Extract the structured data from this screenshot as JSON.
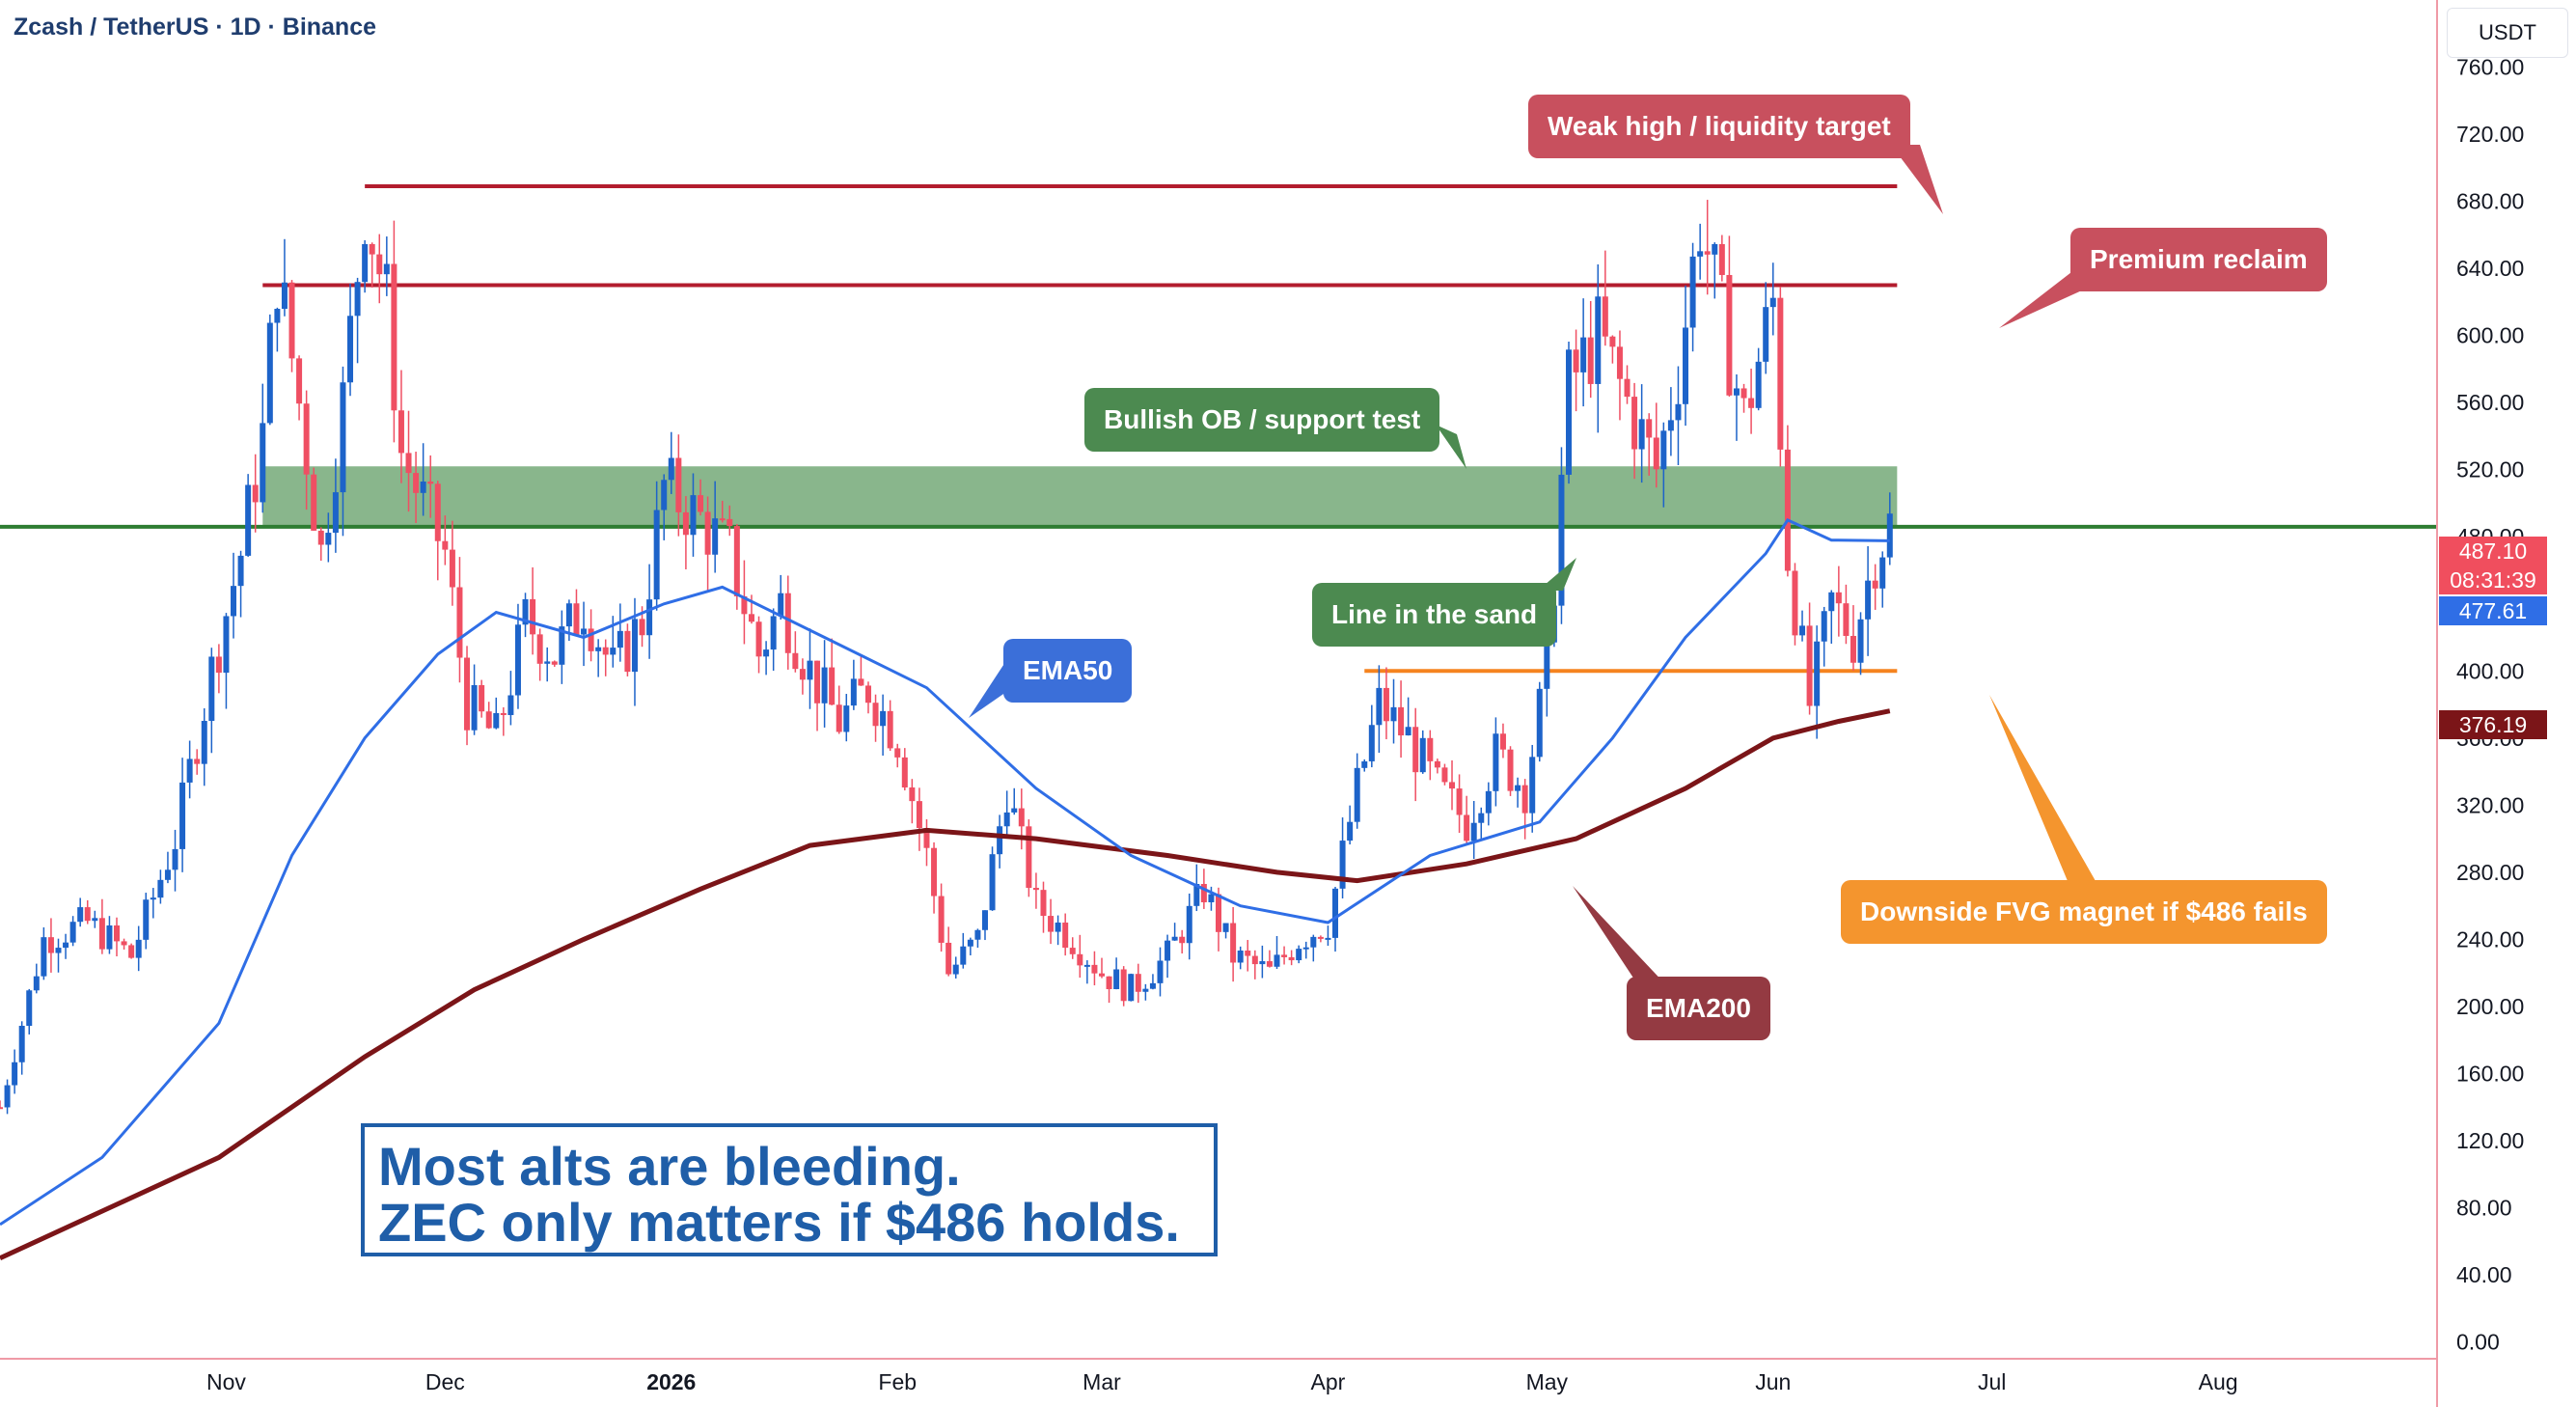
{
  "header": {
    "title": "Zcash / TetherUS · 1D · Binance",
    "currency": "USDT"
  },
  "colors": {
    "up": "#1d63c9",
    "down": "#ef4f63",
    "ema50": "#2f6ee6",
    "ema200": "#7b1518",
    "resistance": "#b31c2e",
    "support_line": "#2e7d32",
    "ob_zone": "#5b9a60",
    "fvg_line": "#f5831f"
  },
  "chart_data": {
    "type": "candlestick",
    "title": "Zcash / TetherUS · 1D · Binance",
    "ylabel": "USDT",
    "ylim": [
      -10,
      800
    ],
    "y_ticks": [
      "760.00",
      "720.00",
      "680.00",
      "640.00",
      "600.00",
      "560.00",
      "520.00",
      "480.00",
      "440.00",
      "400.00",
      "360.00",
      "320.00",
      "280.00",
      "240.00",
      "200.00",
      "160.00",
      "120.00",
      "80.00",
      "40.00",
      "0.00"
    ],
    "x_ticks": [
      {
        "label": "Nov",
        "date": "2025-11-01",
        "bold": false
      },
      {
        "label": "Dec",
        "date": "2025-12-01",
        "bold": false
      },
      {
        "label": "2026",
        "date": "2026-01-01",
        "bold": true
      },
      {
        "label": "Feb",
        "date": "2026-02-01",
        "bold": false
      },
      {
        "label": "Mar",
        "date": "2026-03-01",
        "bold": false
      },
      {
        "label": "Apr",
        "date": "2026-04-01",
        "bold": false
      },
      {
        "label": "May",
        "date": "2026-05-01",
        "bold": false
      },
      {
        "label": "Jun",
        "date": "2026-06-01",
        "bold": false
      },
      {
        "label": "Jul",
        "date": "2026-07-01",
        "bold": false
      },
      {
        "label": "Aug",
        "date": "2026-08-01",
        "bold": false
      }
    ],
    "x_range": [
      "2025-10-01",
      "2026-08-31"
    ],
    "grid": false,
    "close_path": [
      [
        "2025-10-01",
        140
      ],
      [
        "2025-10-07",
        240
      ],
      [
        "2025-10-13",
        250
      ],
      [
        "2025-10-19",
        230
      ],
      [
        "2025-10-25",
        300
      ],
      [
        "2025-10-30",
        400
      ],
      [
        "2025-11-03",
        470
      ],
      [
        "2025-11-06",
        540
      ],
      [
        "2025-11-08",
        640
      ],
      [
        "2025-11-11",
        560
      ],
      [
        "2025-11-14",
        470
      ],
      [
        "2025-11-17",
        560
      ],
      [
        "2025-11-20",
        680
      ],
      [
        "2025-11-23",
        620
      ],
      [
        "2025-11-25",
        530
      ],
      [
        "2025-11-28",
        500
      ],
      [
        "2025-12-01",
        470
      ],
      [
        "2025-12-04",
        380
      ],
      [
        "2025-12-08",
        360
      ],
      [
        "2025-12-12",
        430
      ],
      [
        "2025-12-16",
        410
      ],
      [
        "2025-12-20",
        440
      ],
      [
        "2025-12-24",
        400
      ],
      [
        "2025-12-28",
        430
      ],
      [
        "2025-12-31",
        510
      ],
      [
        "2026-01-05",
        490
      ],
      [
        "2026-01-09",
        470
      ],
      [
        "2026-01-13",
        410
      ],
      [
        "2026-01-16",
        440
      ],
      [
        "2026-01-20",
        400
      ],
      [
        "2026-01-24",
        370
      ],
      [
        "2026-01-28",
        390
      ],
      [
        "2026-02-01",
        360
      ],
      [
        "2026-02-05",
        290
      ],
      [
        "2026-02-08",
        220
      ],
      [
        "2026-02-12",
        240
      ],
      [
        "2026-02-16",
        330
      ],
      [
        "2026-02-20",
        260
      ],
      [
        "2026-02-25",
        240
      ],
      [
        "2026-03-01",
        220
      ],
      [
        "2026-03-05",
        210
      ],
      [
        "2026-03-10",
        230
      ],
      [
        "2026-03-15",
        270
      ],
      [
        "2026-03-19",
        230
      ],
      [
        "2026-03-24",
        220
      ],
      [
        "2026-03-28",
        240
      ],
      [
        "2026-04-01",
        250
      ],
      [
        "2026-04-05",
        330
      ],
      [
        "2026-04-08",
        380
      ],
      [
        "2026-04-12",
        360
      ],
      [
        "2026-04-16",
        330
      ],
      [
        "2026-04-20",
        310
      ],
      [
        "2026-04-24",
        350
      ],
      [
        "2026-04-28",
        330
      ],
      [
        "2026-05-01",
        400
      ],
      [
        "2026-05-04",
        570
      ],
      [
        "2026-05-08",
        600
      ],
      [
        "2026-05-12",
        560
      ],
      [
        "2026-05-16",
        520
      ],
      [
        "2026-05-19",
        580
      ],
      [
        "2026-05-22",
        670
      ],
      [
        "2026-05-25",
        610
      ],
      [
        "2026-05-28",
        550
      ],
      [
        "2026-06-01",
        620
      ],
      [
        "2026-06-03",
        470
      ],
      [
        "2026-06-06",
        380
      ],
      [
        "2026-06-09",
        440
      ],
      [
        "2026-06-12",
        420
      ],
      [
        "2026-06-15",
        470
      ],
      [
        "2026-06-17",
        487
      ]
    ],
    "ema50": [
      [
        "2025-10-01",
        70
      ],
      [
        "2025-10-15",
        110
      ],
      [
        "2025-10-31",
        190
      ],
      [
        "2025-11-10",
        290
      ],
      [
        "2025-11-20",
        360
      ],
      [
        "2025-11-30",
        410
      ],
      [
        "2025-12-08",
        435
      ],
      [
        "2025-12-20",
        420
      ],
      [
        "2025-12-31",
        440
      ],
      [
        "2026-01-08",
        450
      ],
      [
        "2026-01-22",
        420
      ],
      [
        "2026-02-05",
        390
      ],
      [
        "2026-02-20",
        330
      ],
      [
        "2026-03-05",
        290
      ],
      [
        "2026-03-20",
        260
      ],
      [
        "2026-04-01",
        250
      ],
      [
        "2026-04-15",
        290
      ],
      [
        "2026-04-30",
        310
      ],
      [
        "2026-05-10",
        360
      ],
      [
        "2026-05-20",
        420
      ],
      [
        "2026-05-31",
        470
      ],
      [
        "2026-06-03",
        490
      ],
      [
        "2026-06-09",
        478
      ],
      [
        "2026-06-17",
        477.61
      ]
    ],
    "ema200": [
      [
        "2025-10-01",
        50
      ],
      [
        "2025-10-31",
        110
      ],
      [
        "2025-11-20",
        170
      ],
      [
        "2025-12-05",
        210
      ],
      [
        "2025-12-20",
        240
      ],
      [
        "2026-01-05",
        270
      ],
      [
        "2026-01-20",
        296
      ],
      [
        "2026-02-05",
        305
      ],
      [
        "2026-02-20",
        300
      ],
      [
        "2026-03-10",
        290
      ],
      [
        "2026-03-25",
        280
      ],
      [
        "2026-04-05",
        275
      ],
      [
        "2026-04-20",
        285
      ],
      [
        "2026-05-05",
        300
      ],
      [
        "2026-05-20",
        330
      ],
      [
        "2026-06-01",
        360
      ],
      [
        "2026-06-10",
        370
      ],
      [
        "2026-06-17",
        376.19
      ]
    ],
    "levels": [
      {
        "name": "resistance-high",
        "price": 689,
        "from": "2025-11-20",
        "to": "2026-06-18"
      },
      {
        "name": "resistance-premium",
        "price": 630,
        "from": "2025-11-06",
        "to": "2026-06-18"
      },
      {
        "name": "line-in-the-sand",
        "price": 486,
        "from": "2025-10-01",
        "to": "2026-08-31"
      },
      {
        "name": "fvg-magnet",
        "price": 400,
        "from": "2026-04-06",
        "to": "2026-06-18"
      }
    ],
    "zones": [
      {
        "name": "bullish-ob",
        "from_price": 486,
        "to_price": 522,
        "from": "2025-11-06",
        "to": "2026-06-18"
      }
    ],
    "price_labels": {
      "last": "487.10",
      "countdown": "08:31:39",
      "ema50": "477.61",
      "ema200": "376.19"
    }
  },
  "annotations": {
    "weak_high": "Weak high / liquidity target",
    "premium_reclaim": "Premium reclaim",
    "bullish_ob": "Bullish OB / support test",
    "line_in_sand": "Line in the sand",
    "ema50": "EMA50",
    "ema200": "EMA200",
    "fvg": "Downside FVG magnet if $486 fails"
  },
  "banner": {
    "line1": "Most alts are bleeding.",
    "line2": "ZEC only matters if $486 holds."
  }
}
